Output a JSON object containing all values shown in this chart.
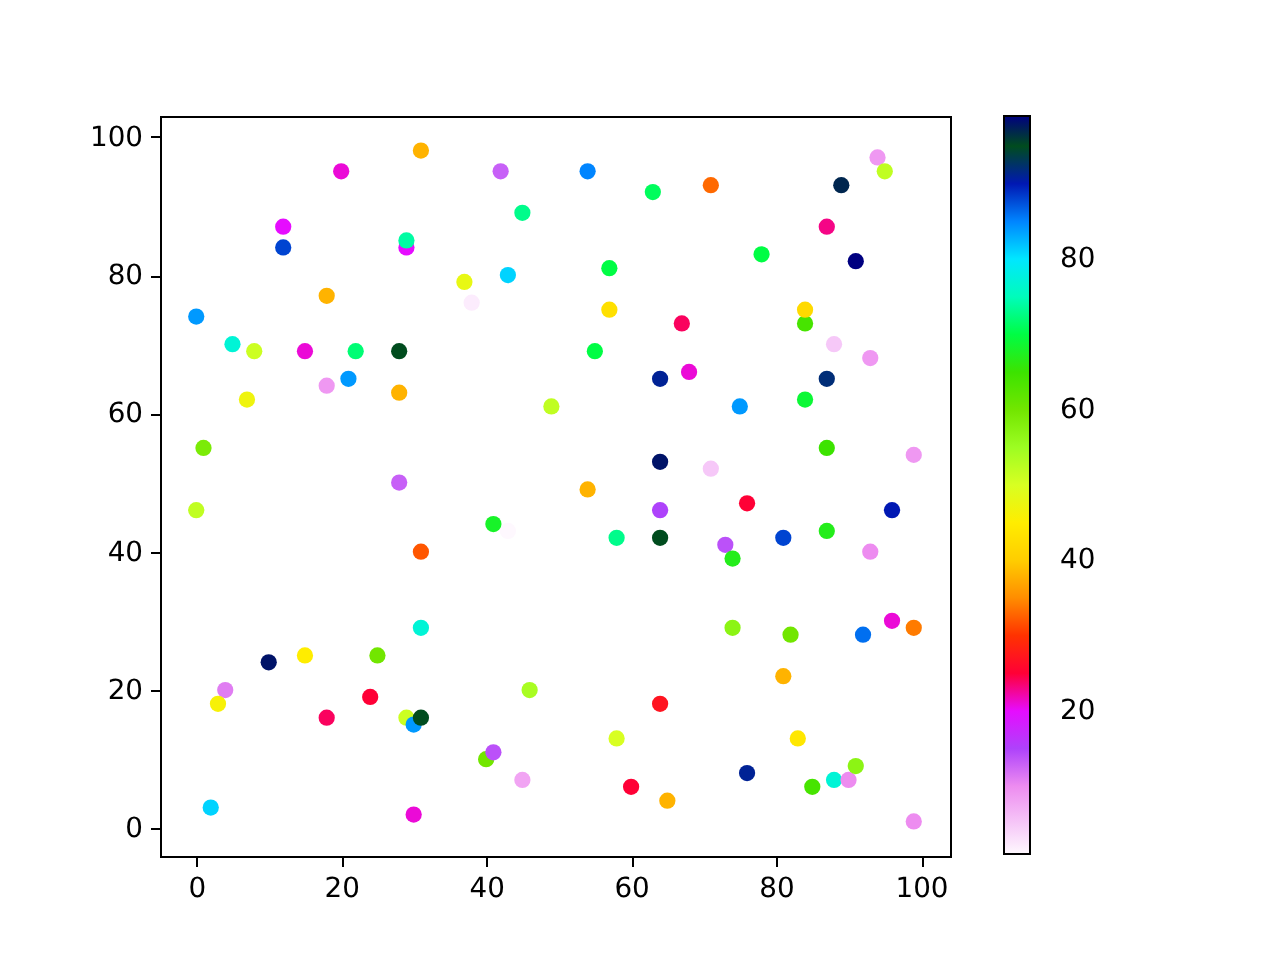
{
  "chart_data": {
    "type": "scatter",
    "x": [
      20,
      31,
      42,
      45,
      12,
      12,
      29,
      29,
      38,
      37,
      43,
      18,
      0,
      5,
      8,
      15,
      22,
      28,
      18,
      21,
      7,
      28,
      49,
      1,
      28,
      54,
      63,
      71,
      89,
      94,
      95,
      87,
      57,
      78,
      91,
      57,
      67,
      84,
      84,
      88,
      93,
      55,
      64,
      68,
      87,
      75,
      84,
      64,
      71,
      87,
      99,
      54,
      76,
      64,
      96,
      58,
      64,
      73,
      74,
      81,
      87,
      93,
      74,
      82,
      92,
      96,
      99,
      81,
      64,
      58,
      83,
      76,
      85,
      88,
      90,
      91,
      60,
      65,
      99,
      0,
      43,
      41,
      31,
      31,
      10,
      15,
      25,
      4,
      3,
      18,
      24,
      29,
      30,
      31,
      46,
      40,
      41,
      45,
      2,
      30
    ],
    "values": [
      95,
      98,
      95,
      89,
      87,
      84,
      84,
      85,
      76,
      79,
      80,
      77,
      74,
      70,
      69,
      69,
      69,
      69,
      64,
      65,
      62,
      63,
      61,
      55,
      50,
      95,
      92,
      93,
      93,
      97,
      95,
      87,
      81,
      83,
      82,
      75,
      73,
      73,
      75,
      70,
      68,
      69,
      65,
      66,
      65,
      61,
      62,
      53,
      52,
      55,
      54,
      49,
      47,
      46,
      46,
      42,
      42,
      41,
      39,
      42,
      43,
      40,
      29,
      28,
      28,
      30,
      29,
      22,
      18,
      13,
      13,
      8,
      6,
      7,
      7,
      9,
      6,
      4,
      1,
      46,
      43,
      44,
      40,
      29,
      24,
      25,
      25,
      20,
      18,
      16,
      19,
      16,
      15,
      16,
      20,
      10,
      11,
      7,
      3,
      2
    ],
    "cvalues": [
      21,
      38,
      13,
      73,
      20,
      88,
      20,
      74,
      2,
      48,
      81,
      38,
      84,
      77,
      51,
      21,
      72,
      95,
      9,
      84,
      47,
      38,
      52,
      59,
      13,
      85,
      71,
      33,
      97,
      9,
      52,
      23,
      70,
      70,
      99,
      43,
      24,
      64,
      42,
      5,
      9,
      70,
      91,
      21,
      92,
      84,
      69,
      98,
      5,
      65,
      9,
      38,
      25,
      15,
      90,
      73,
      95,
      14,
      67,
      88,
      67,
      10,
      57,
      60,
      86,
      21,
      34,
      38,
      27,
      50,
      44,
      91,
      64,
      77,
      10,
      57,
      25,
      38,
      10,
      52,
      1,
      68,
      32,
      77,
      98,
      45,
      60,
      11,
      46,
      24,
      25,
      51,
      84,
      95,
      54,
      60,
      14,
      8,
      81,
      21
    ],
    "xlim": [
      -5,
      104
    ],
    "ylim": [
      -4,
      103
    ],
    "xticks": [
      0,
      20,
      40,
      60,
      80,
      100
    ],
    "yticks": [
      0,
      20,
      40,
      60,
      80,
      100
    ],
    "clim": [
      1,
      99
    ],
    "cticks": [
      20,
      40,
      60,
      80
    ],
    "marker": "circle"
  }
}
